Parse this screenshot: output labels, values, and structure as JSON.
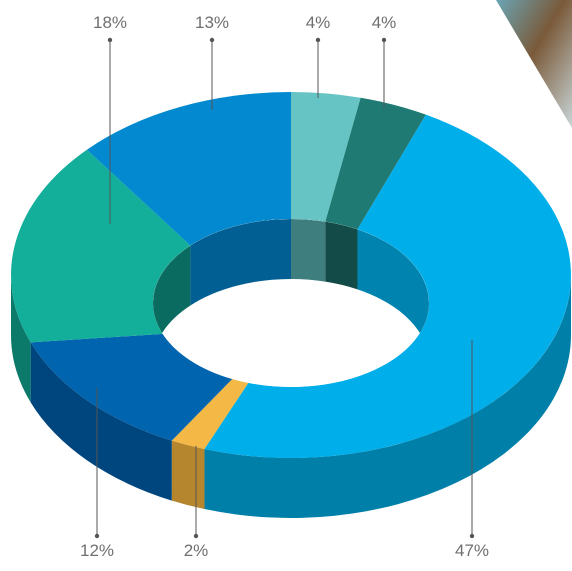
{
  "chart_data": {
    "type": "pie",
    "style": "3d-donut",
    "title": "",
    "legend": "none",
    "slices": [
      {
        "label": "4%",
        "value": 4,
        "color": "#66C4C4",
        "side": "#4A8F8F",
        "inner": "#3F7E7E"
      },
      {
        "label": "4%",
        "value": 4,
        "color": "#1F7A73",
        "side": "#155A55",
        "inner": "#124B47"
      },
      {
        "label": "47%",
        "value": 47,
        "color": "#00AEEA",
        "side": "#007FA8",
        "inner": "#0083AE"
      },
      {
        "label": "2%",
        "value": 2,
        "color": "#F3B845",
        "side": "#B5862E",
        "inner": "#A57A2A"
      },
      {
        "label": "12%",
        "value": 12,
        "color": "#0064AE",
        "side": "#00467E",
        "inner": "#003F72"
      },
      {
        "label": "18%",
        "value": 18,
        "color": "#14AF9A",
        "side": "#0C7A6B",
        "inner": "#0A6C60"
      },
      {
        "label": "13%",
        "value": 13,
        "color": "#0389CF",
        "side": "#025F90",
        "inner": "#025F94"
      }
    ]
  },
  "decoration": {
    "photo_corner": "photo-corner-image"
  }
}
